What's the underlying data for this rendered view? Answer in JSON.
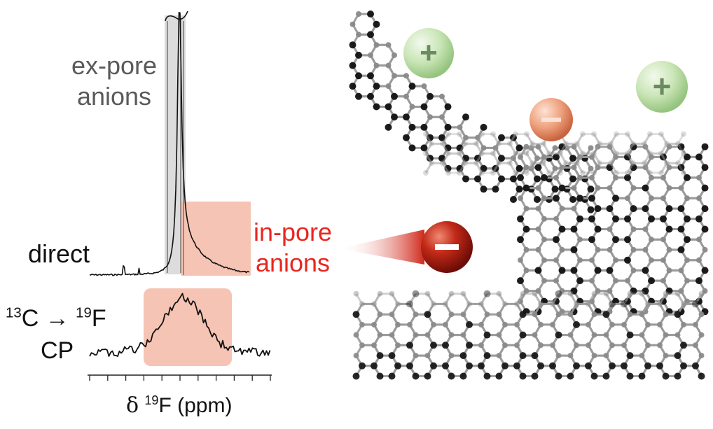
{
  "labels": {
    "ex_pore_line1": "ex-pore",
    "ex_pore_line2": "anions",
    "in_pore_line1": "in-pore",
    "in_pore_line2": "anions",
    "direct": "direct",
    "cp_nucleus_from_mass": "13",
    "cp_nucleus_from": "C",
    "cp_arrow": "→",
    "cp_nucleus_to_mass": "19",
    "cp_nucleus_to": "F",
    "cp_line2": "CP",
    "axis_delta": "δ",
    "axis_mass": "19",
    "axis_rest": "F (ppm)",
    "ion_plus": "+",
    "ion_minus": "−"
  },
  "colors": {
    "gray_label": "#5a5a5a",
    "red_label": "#e8271f",
    "salmon_highlight": "#f6c4b4",
    "gray_highlight": "#d9d9d9",
    "cation_green": "#b9dca0",
    "anion_orange": "#e99a78",
    "anion_red": "#b51d12",
    "carbon_dark": "#111111",
    "bond_gray": "#9a9a9a"
  }
}
